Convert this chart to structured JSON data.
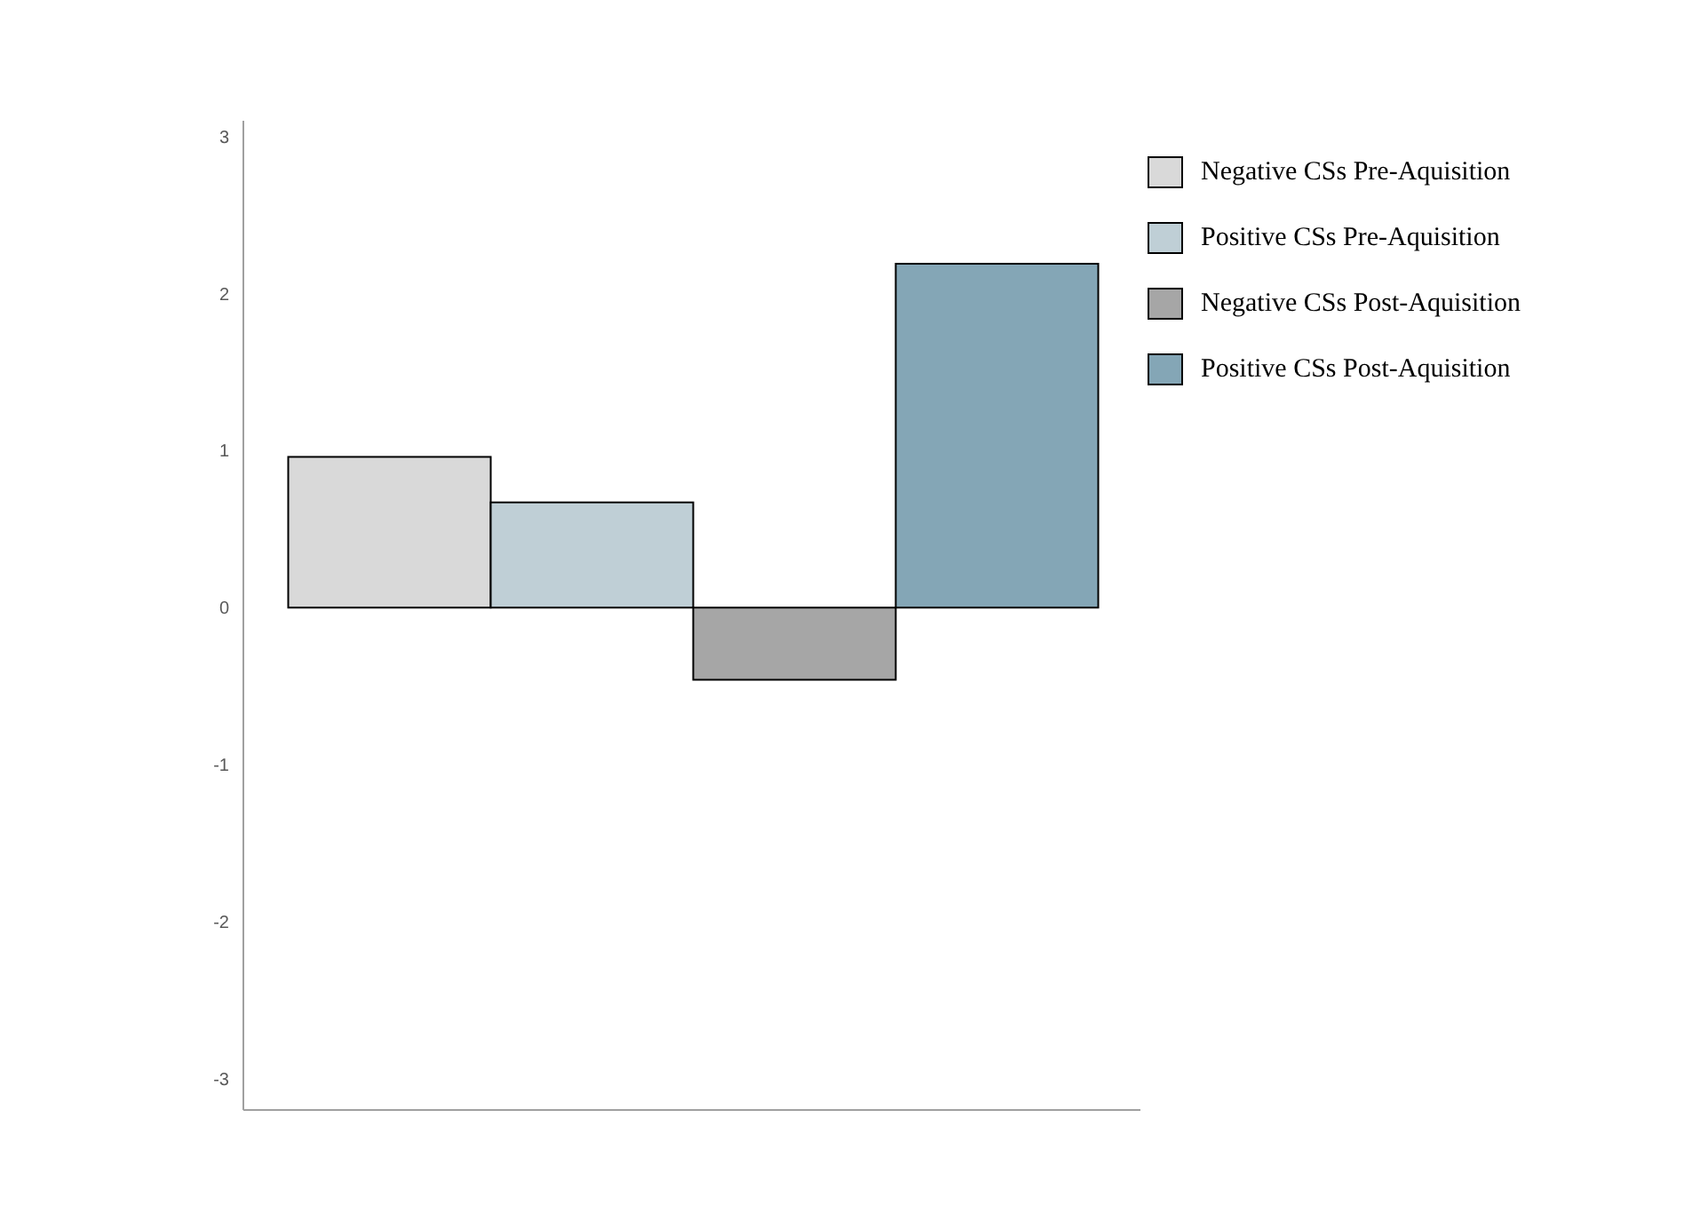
{
  "chart_data": {
    "type": "bar",
    "categories": [
      null
    ],
    "series": [
      {
        "name": "Negative CSs Pre-Aquisition",
        "color": "#d9d9d9",
        "values": [
          0.96
        ]
      },
      {
        "name": "Positive CSs Pre-Aquisition",
        "color": "#bfcfd6",
        "values": [
          0.67
        ]
      },
      {
        "name": "Negative CSs Post-Aquisition",
        "color": "#a6a6a6",
        "values": [
          -0.46
        ]
      },
      {
        "name": "Positive CSs Post-Aquisition",
        "color": "#84a6b6",
        "values": [
          2.19
        ]
      }
    ],
    "ylim": [
      -3.2,
      3.1
    ],
    "yticks": [
      -3,
      -2,
      -1,
      0,
      1,
      2,
      3
    ],
    "legend": "top right"
  }
}
